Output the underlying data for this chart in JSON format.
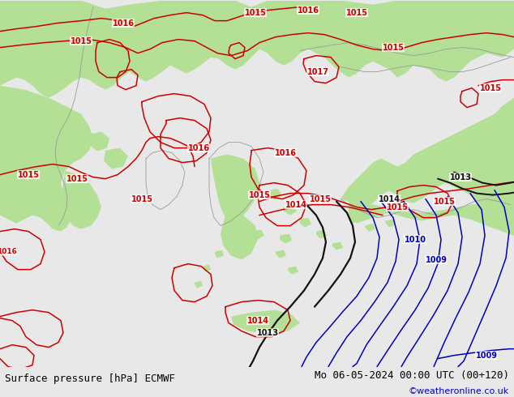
{
  "title_left": "Surface pressure [hPa] ECMWF",
  "title_right": "Mo 06-05-2024 00:00 UTC (00+120)",
  "credit": "©weatheronline.co.uk",
  "bg_color": "#e8e8e8",
  "sea_color": "#d8d8d8",
  "land_green": "#b4e096",
  "land_green_dark": "#a8d888",
  "bottom_bar_color": "#ffffff",
  "red": "#cc0000",
  "black": "#111111",
  "blue": "#0000bb",
  "gray_coast": "#999999",
  "font_size_label": 7,
  "font_size_bottom": 9,
  "font_size_credit": 8,
  "title_color": "#000000",
  "credit_color": "#0000cc"
}
